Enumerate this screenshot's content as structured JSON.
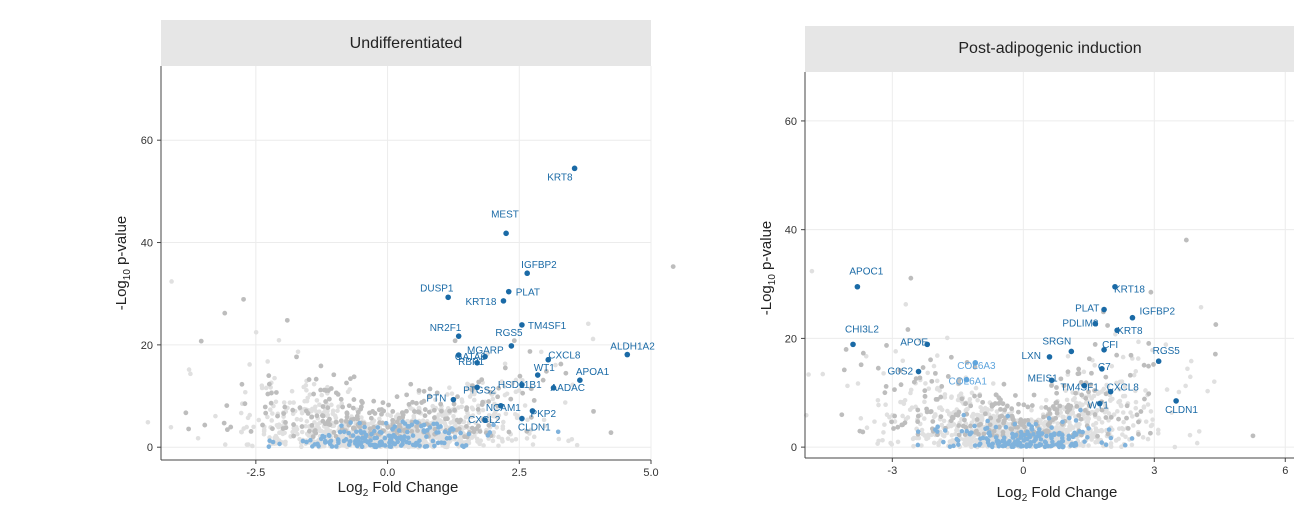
{
  "colors": {
    "strip_bg": "#e6e6e6",
    "bulk_point": "#e0e0e0",
    "grey_point": "#bdbdbd",
    "light_blue_point": "#7fb2dc",
    "highlight_point": "#1a6aa6",
    "label_blue": "#1a6aa6",
    "label_light": "#5fa5dd"
  },
  "chart_data": [
    {
      "type": "scatter",
      "title": "Undifferentiated",
      "xlabel_main": "Log",
      "xlabel_sub": "2",
      "xlabel_rest": " Fold Change",
      "ylabel_main": "-Log",
      "ylabel_sub": "10",
      "ylabel_rest": " p-value",
      "xlim": [
        -4.3,
        5.0
      ],
      "ylim": [
        -2.5,
        74.5
      ],
      "xticks": [
        -2.5,
        0.0,
        2.5,
        5.0
      ],
      "xtick_labels": [
        "-2.5",
        "0.0",
        "2.5",
        "5.0"
      ],
      "yticks": [
        0,
        20,
        40,
        60
      ],
      "ytick_labels": [
        "0",
        "20",
        "40",
        "60"
      ],
      "grid": true,
      "highlighted_genes": [
        {
          "label": "KRT8",
          "x": 3.55,
          "y": 54.5
        },
        {
          "label": "MEST",
          "x": 2.25,
          "y": 41.8
        },
        {
          "label": "IGFBP2",
          "x": 2.65,
          "y": 34.0
        },
        {
          "label": "DUSP1",
          "x": 1.15,
          "y": 29.3
        },
        {
          "label": "PLAT",
          "x": 2.3,
          "y": 30.4
        },
        {
          "label": "KRT18",
          "x": 2.2,
          "y": 28.6
        },
        {
          "label": "TM4SF1",
          "x": 2.55,
          "y": 23.9
        },
        {
          "label": "NR2F1",
          "x": 1.35,
          "y": 21.7
        },
        {
          "label": "RGS5",
          "x": 2.35,
          "y": 19.8
        },
        {
          "label": "GATA6",
          "x": 1.35,
          "y": 18.0
        },
        {
          "label": "MGARP",
          "x": 1.85,
          "y": 17.7
        },
        {
          "label": "CXCL8",
          "x": 3.05,
          "y": 17.1
        },
        {
          "label": "ALDH1A2",
          "x": 4.55,
          "y": 18.1
        },
        {
          "label": "WT1",
          "x": 2.85,
          "y": 14.1
        },
        {
          "label": "RBP1",
          "x": 1.7,
          "y": 16.5
        },
        {
          "label": "APOA1",
          "x": 3.65,
          "y": 13.1
        },
        {
          "label": "PTGS2",
          "x": 1.7,
          "y": 11.7
        },
        {
          "label": "HSD11B1",
          "x": 2.55,
          "y": 12.2
        },
        {
          "label": "AADAC",
          "x": 3.15,
          "y": 11.6
        },
        {
          "label": "PTN",
          "x": 1.25,
          "y": 9.3
        },
        {
          "label": "NCAM1",
          "x": 2.15,
          "y": 8.1
        },
        {
          "label": "PKP2",
          "x": 2.75,
          "y": 7.1
        },
        {
          "label": "CXCL2",
          "x": 1.85,
          "y": 5.3
        },
        {
          "label": "CLDN1",
          "x": 2.55,
          "y": 5.6
        }
      ]
    },
    {
      "type": "scatter",
      "title": "Post-adipogenic induction",
      "xlabel_main": "Log",
      "xlabel_sub": "2",
      "xlabel_rest": " Fold Change",
      "ylabel_main": "-Log",
      "ylabel_sub": "10",
      "ylabel_rest": " p-value",
      "xlim": [
        -5.0,
        6.2
      ],
      "ylim": [
        -2.0,
        69.0
      ],
      "xticks": [
        -3,
        0,
        3,
        6
      ],
      "xtick_labels": [
        "-3",
        "0",
        "3",
        "6"
      ],
      "yticks": [
        0,
        20,
        40,
        60
      ],
      "ytick_labels": [
        "0",
        "20",
        "40",
        "60"
      ],
      "grid": true,
      "highlighted_genes": [
        {
          "label": "APOC1",
          "x": -3.8,
          "y": 29.5,
          "style": "dark"
        },
        {
          "label": "KRT18",
          "x": 2.1,
          "y": 29.5,
          "style": "dark"
        },
        {
          "label": "PLAT",
          "x": 1.85,
          "y": 25.3,
          "style": "dark"
        },
        {
          "label": "IGFBP2",
          "x": 2.5,
          "y": 23.8,
          "style": "dark"
        },
        {
          "label": "PDLIM3",
          "x": 1.65,
          "y": 22.7,
          "style": "dark"
        },
        {
          "label": "KRT8",
          "x": 2.15,
          "y": 21.5,
          "style": "dark"
        },
        {
          "label": "CHI3L2",
          "x": -3.9,
          "y": 18.9,
          "style": "dark"
        },
        {
          "label": "APOE",
          "x": -2.2,
          "y": 18.9,
          "style": "dark"
        },
        {
          "label": "SRGN",
          "x": 1.1,
          "y": 17.6,
          "style": "dark"
        },
        {
          "label": "CFI",
          "x": 1.85,
          "y": 17.9,
          "style": "dark"
        },
        {
          "label": "LXN",
          "x": 0.6,
          "y": 16.6,
          "style": "dark"
        },
        {
          "label": "RGS5",
          "x": 3.1,
          "y": 15.8,
          "style": "dark"
        },
        {
          "label": "COL6A3",
          "x": -1.1,
          "y": 15.5,
          "style": "light"
        },
        {
          "label": "C7",
          "x": 1.8,
          "y": 14.4,
          "style": "dark"
        },
        {
          "label": "G0S2",
          "x": -2.4,
          "y": 13.9,
          "style": "dark"
        },
        {
          "label": "MEIS1",
          "x": 0.65,
          "y": 12.3,
          "style": "dark"
        },
        {
          "label": "COL6A1",
          "x": -1.3,
          "y": 12.4,
          "style": "light"
        },
        {
          "label": "TM4SF1",
          "x": 1.4,
          "y": 11.3,
          "style": "dark"
        },
        {
          "label": "CXCL8",
          "x": 2.0,
          "y": 10.2,
          "style": "dark"
        },
        {
          "label": "CLDN1",
          "x": 3.5,
          "y": 8.5,
          "style": "dark"
        },
        {
          "label": "WT1",
          "x": 1.75,
          "y": 8.0,
          "style": "dark"
        }
      ]
    }
  ]
}
